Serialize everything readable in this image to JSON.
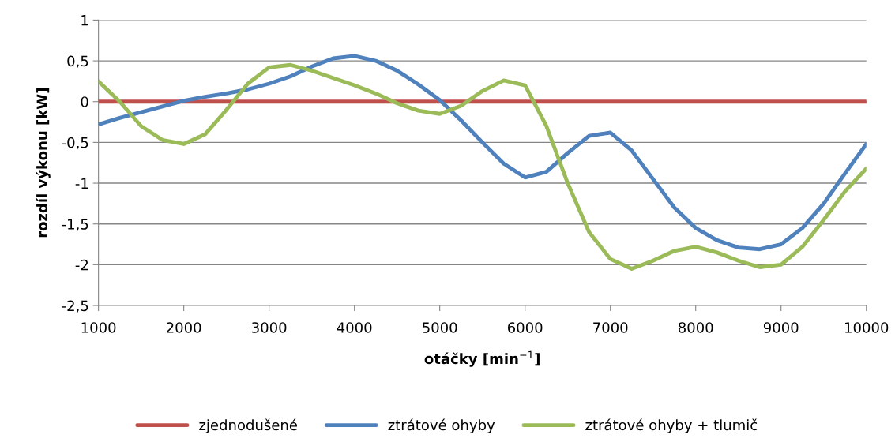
{
  "chart_data": {
    "type": "line",
    "xlabel": "otáčky [min$^{−1}$]",
    "ylabel": "rozdíl výkonu [kW]",
    "x": [
      1000,
      1250,
      1500,
      1750,
      2000,
      2250,
      2500,
      2750,
      3000,
      3250,
      3500,
      3750,
      4000,
      4250,
      4500,
      4750,
      5000,
      5250,
      5500,
      5750,
      6000,
      6250,
      6500,
      6750,
      7000,
      7250,
      7500,
      7750,
      8000,
      8250,
      8500,
      8750,
      9000,
      9250,
      9500,
      9750,
      10000
    ],
    "series": [
      {
        "name": "zjednodušené",
        "color": "#c0504d",
        "values": [
          0,
          0,
          0,
          0,
          0,
          0,
          0,
          0,
          0,
          0,
          0,
          0,
          0,
          0,
          0,
          0,
          0,
          0,
          0,
          0,
          0,
          0,
          0,
          0,
          0,
          0,
          0,
          0,
          0,
          0,
          0,
          0,
          0,
          0,
          0,
          0,
          0
        ]
      },
      {
        "name": "ztrátové ohyby",
        "color": "#4f81bd",
        "values": [
          -0.28,
          -0.2,
          -0.13,
          -0.06,
          0.01,
          0.06,
          0.1,
          0.15,
          0.22,
          0.31,
          0.43,
          0.53,
          0.56,
          0.5,
          0.38,
          0.21,
          0.02,
          -0.23,
          -0.5,
          -0.76,
          -0.93,
          -0.86,
          -0.63,
          -0.42,
          -0.38,
          -0.6,
          -0.95,
          -1.3,
          -1.55,
          -1.7,
          -1.79,
          -1.81,
          -1.75,
          -1.55,
          -1.25,
          -0.88,
          -0.52
        ]
      },
      {
        "name": "ztrátové ohyby + tlumič",
        "color": "#9bbb59",
        "values": [
          0.25,
          0.0,
          -0.3,
          -0.47,
          -0.52,
          -0.4,
          -0.1,
          0.22,
          0.42,
          0.45,
          0.38,
          0.29,
          0.2,
          0.1,
          -0.02,
          -0.11,
          -0.15,
          -0.05,
          0.13,
          0.26,
          0.2,
          -0.3,
          -1.0,
          -1.6,
          -1.93,
          -2.05,
          -1.95,
          -1.83,
          -1.78,
          -1.85,
          -1.95,
          -2.03,
          -2.0,
          -1.78,
          -1.45,
          -1.1,
          -0.82
        ]
      }
    ],
    "xlim": [
      1000,
      10000
    ],
    "xticks": [
      1000,
      2000,
      3000,
      4000,
      5000,
      6000,
      7000,
      8000,
      9000,
      10000
    ],
    "ylim": [
      -2.5,
      1
    ],
    "yticks": [
      {
        "value": -2.5,
        "label": "-2,5"
      },
      {
        "value": -2,
        "label": "-2"
      },
      {
        "value": -1.5,
        "label": "-1,5"
      },
      {
        "value": -1,
        "label": "-1"
      },
      {
        "value": -0.5,
        "label": "-0,5"
      },
      {
        "value": 0,
        "label": "0"
      },
      {
        "value": 0.5,
        "label": "0,5"
      },
      {
        "value": 1,
        "label": "1"
      }
    ],
    "grid": "y",
    "legend": "bottom",
    "marker": "none",
    "line_style": "solid"
  }
}
